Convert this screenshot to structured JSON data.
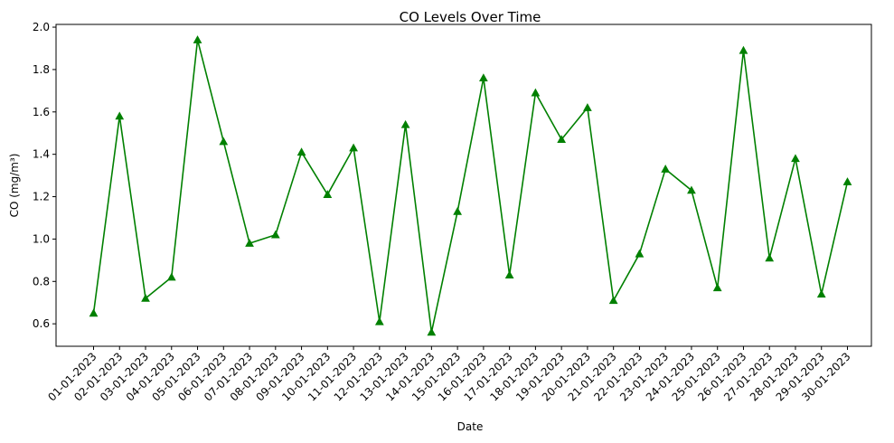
{
  "chart_data": {
    "type": "line",
    "title": "CO Levels Over Time",
    "xlabel": "Date",
    "ylabel": "CO (mg/m³)",
    "categories": [
      "01-01-2023",
      "02-01-2023",
      "03-01-2023",
      "04-01-2023",
      "05-01-2023",
      "06-01-2023",
      "07-01-2023",
      "08-01-2023",
      "09-01-2023",
      "10-01-2023",
      "11-01-2023",
      "12-01-2023",
      "13-01-2023",
      "14-01-2023",
      "15-01-2023",
      "16-01-2023",
      "17-01-2023",
      "18-01-2023",
      "19-01-2023",
      "20-01-2023",
      "21-01-2023",
      "22-01-2023",
      "23-01-2023",
      "24-01-2023",
      "25-01-2023",
      "26-01-2023",
      "27-01-2023",
      "28-01-2023",
      "29-01-2023",
      "30-01-2023"
    ],
    "series": [
      {
        "name": "CO",
        "color": "#008000",
        "marker": "triangle-up",
        "values": [
          0.65,
          1.58,
          0.72,
          0.82,
          1.94,
          1.46,
          0.98,
          1.02,
          1.41,
          1.21,
          1.43,
          0.61,
          1.54,
          0.56,
          1.13,
          1.76,
          0.83,
          1.69,
          1.47,
          1.62,
          0.71,
          0.93,
          1.33,
          1.23,
          0.77,
          1.89,
          0.91,
          1.38,
          0.74,
          1.27
        ]
      }
    ],
    "ylim": [
      0.494,
      2.013
    ],
    "yticks": [
      0.6,
      0.8,
      1.0,
      1.2,
      1.4,
      1.6,
      1.8,
      2.0
    ],
    "ytick_labels": [
      "0.6",
      "0.8",
      "1.0",
      "1.2",
      "1.4",
      "1.6",
      "1.8",
      "2.0"
    ],
    "grid": false,
    "legend": "none"
  }
}
